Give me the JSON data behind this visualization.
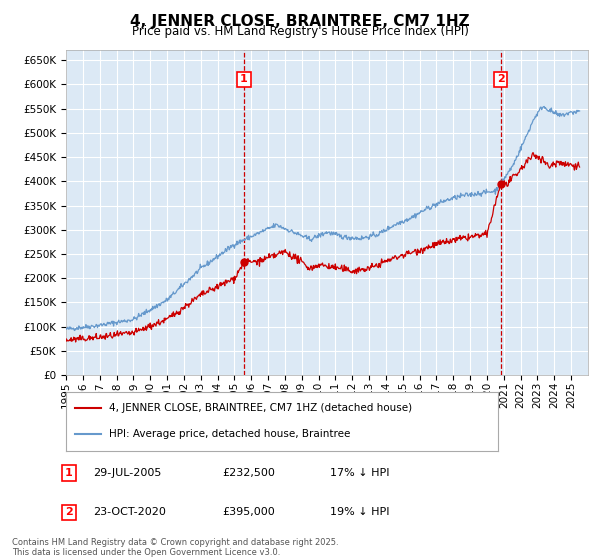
{
  "title": "4, JENNER CLOSE, BRAINTREE, CM7 1HZ",
  "subtitle": "Price paid vs. HM Land Registry's House Price Index (HPI)",
  "plot_bg_color": "#dce9f5",
  "fig_bg_color": "#ffffff",
  "grid_color": "#ffffff",
  "ylim": [
    0,
    670000
  ],
  "yticks": [
    0,
    50000,
    100000,
    150000,
    200000,
    250000,
    300000,
    350000,
    400000,
    450000,
    500000,
    550000,
    600000,
    650000
  ],
  "year_start": 1995,
  "year_end": 2026,
  "sale1_date": 2005.57,
  "sale1_price": 232500,
  "sale1_label": "1",
  "sale2_date": 2020.81,
  "sale2_price": 395000,
  "sale2_label": "2",
  "red_line_color": "#cc0000",
  "blue_line_color": "#6699cc",
  "vline_color": "#cc0000",
  "legend_label_red": "4, JENNER CLOSE, BRAINTREE, CM7 1HZ (detached house)",
  "legend_label_blue": "HPI: Average price, detached house, Braintree",
  "table_row1": [
    "1",
    "29-JUL-2005",
    "£232,500",
    "17% ↓ HPI"
  ],
  "table_row2": [
    "2",
    "23-OCT-2020",
    "£395,000",
    "19% ↓ HPI"
  ],
  "footnote": "Contains HM Land Registry data © Crown copyright and database right 2025.\nThis data is licensed under the Open Government Licence v3.0.",
  "title_fontsize": 11,
  "subtitle_fontsize": 8.5,
  "tick_fontsize": 7.5
}
